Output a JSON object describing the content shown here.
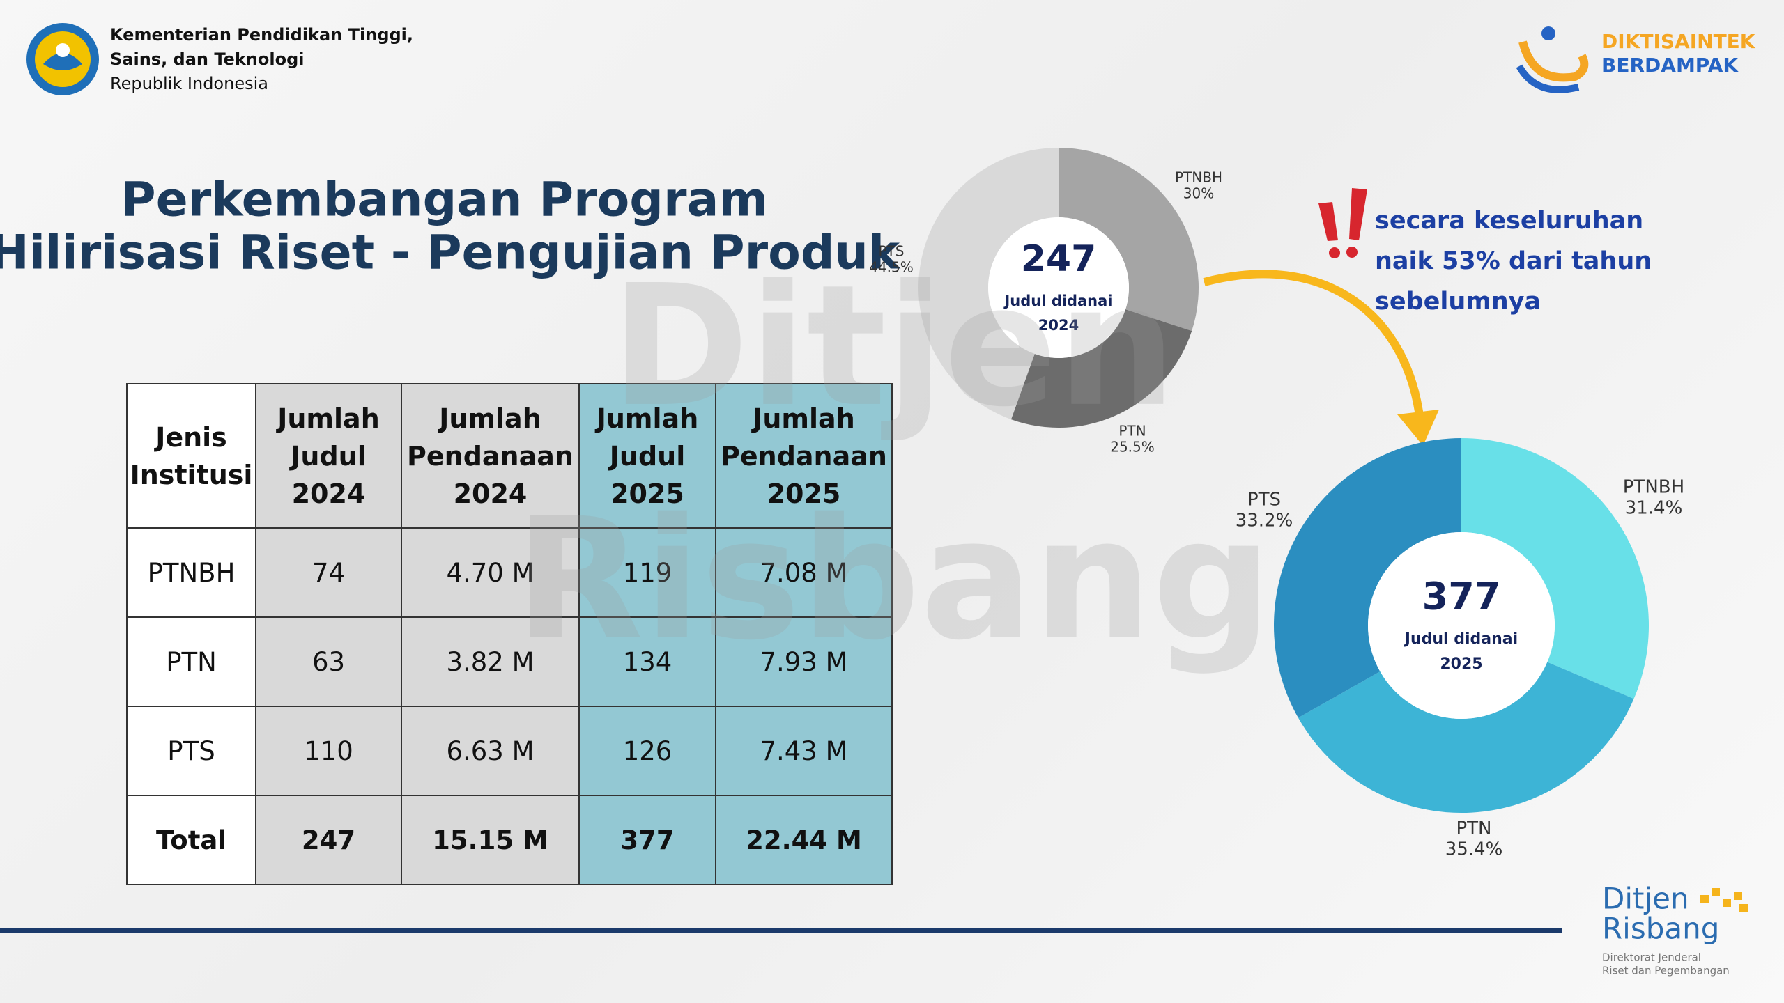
{
  "header": {
    "ministry_lines": [
      "Kementerian Pendidikan Tinggi,",
      "Sains, dan Teknologi"
    ],
    "country": "Republik Indonesia",
    "campaign_lines": [
      "DIKTISAINTEK",
      "BERDAMPAK"
    ]
  },
  "title_lines": [
    "Perkembangan Program",
    "Hilirisasi Riset - Pengujian Produk"
  ],
  "table": {
    "header": [
      [
        "Jenis",
        "Institusi"
      ],
      [
        "Jumlah",
        "Judul",
        "2024"
      ],
      [
        "Jumlah",
        "Pendanaan",
        "2024"
      ],
      [
        "Jumlah",
        "Judul",
        "2025"
      ],
      [
        "Jumlah",
        "Pendanaan",
        "2025"
      ]
    ],
    "rows": [
      [
        "PTNBH",
        "74",
        "4.70 M",
        "119",
        "7.08 M"
      ],
      [
        "PTN",
        "63",
        "3.82 M",
        "134",
        "7.93 M"
      ],
      [
        "PTS",
        "110",
        "6.63 M",
        "126",
        "7.43 M"
      ],
      [
        "Total",
        "247",
        "15.15 M",
        "377",
        "22.44 M"
      ]
    ]
  },
  "chart_data": [
    {
      "type": "donut",
      "center_value": 247,
      "center_label": "Judul didanai",
      "center_year": "2024",
      "categories": [
        "PTNBH",
        "PTN",
        "PTS"
      ],
      "values": [
        30,
        25.5,
        44.5
      ],
      "value_labels": [
        "30%",
        "25.5%",
        "44.5%"
      ],
      "colors": [
        "#a5a5a5",
        "#6c6c6c",
        "#d9d9d9"
      ]
    },
    {
      "type": "donut",
      "center_value": 377,
      "center_label": "Judul didanai",
      "center_year": "2025",
      "categories": [
        "PTNBH",
        "PTN",
        "PTS"
      ],
      "values": [
        31.4,
        35.4,
        33.2
      ],
      "value_labels": [
        "31.4%",
        "35.4%",
        "33.2%"
      ],
      "colors": [
        "#68e0e8",
        "#3db4d6",
        "#2b8ec0"
      ]
    }
  ],
  "callout_lines": [
    "secara keseluruhan",
    "naik 53% dari tahun",
    "sebelumnya"
  ],
  "watermark_lines": [
    "Ditjen",
    "Risbang"
  ],
  "footer_logo": {
    "name_lines": [
      "Ditjen",
      "Risbang"
    ],
    "subtitle_lines": [
      "Direktorat Jenderal",
      "Riset dan Pegembangan"
    ]
  }
}
